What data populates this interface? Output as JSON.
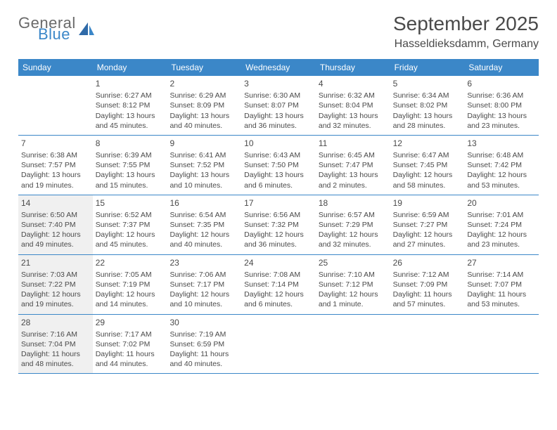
{
  "logo": {
    "general": "General",
    "blue": "Blue"
  },
  "title": "September 2025",
  "location": "Hasseldieksdamm, Germany",
  "colors": {
    "header_bg": "#3b87c8",
    "header_text": "#ffffff",
    "shaded_bg": "#f0f0f0",
    "text": "#4a4a4a",
    "divider": "#3b87c8"
  },
  "weekdays": [
    "Sunday",
    "Monday",
    "Tuesday",
    "Wednesday",
    "Thursday",
    "Friday",
    "Saturday"
  ],
  "weeks": [
    [
      {
        "empty": true
      },
      {
        "num": "1",
        "sunrise": "Sunrise: 6:27 AM",
        "sunset": "Sunset: 8:12 PM",
        "daylight": "Daylight: 13 hours and 45 minutes."
      },
      {
        "num": "2",
        "sunrise": "Sunrise: 6:29 AM",
        "sunset": "Sunset: 8:09 PM",
        "daylight": "Daylight: 13 hours and 40 minutes."
      },
      {
        "num": "3",
        "sunrise": "Sunrise: 6:30 AM",
        "sunset": "Sunset: 8:07 PM",
        "daylight": "Daylight: 13 hours and 36 minutes."
      },
      {
        "num": "4",
        "sunrise": "Sunrise: 6:32 AM",
        "sunset": "Sunset: 8:04 PM",
        "daylight": "Daylight: 13 hours and 32 minutes."
      },
      {
        "num": "5",
        "sunrise": "Sunrise: 6:34 AM",
        "sunset": "Sunset: 8:02 PM",
        "daylight": "Daylight: 13 hours and 28 minutes."
      },
      {
        "num": "6",
        "sunrise": "Sunrise: 6:36 AM",
        "sunset": "Sunset: 8:00 PM",
        "daylight": "Daylight: 13 hours and 23 minutes."
      }
    ],
    [
      {
        "num": "7",
        "sunrise": "Sunrise: 6:38 AM",
        "sunset": "Sunset: 7:57 PM",
        "daylight": "Daylight: 13 hours and 19 minutes."
      },
      {
        "num": "8",
        "sunrise": "Sunrise: 6:39 AM",
        "sunset": "Sunset: 7:55 PM",
        "daylight": "Daylight: 13 hours and 15 minutes."
      },
      {
        "num": "9",
        "sunrise": "Sunrise: 6:41 AM",
        "sunset": "Sunset: 7:52 PM",
        "daylight": "Daylight: 13 hours and 10 minutes."
      },
      {
        "num": "10",
        "sunrise": "Sunrise: 6:43 AM",
        "sunset": "Sunset: 7:50 PM",
        "daylight": "Daylight: 13 hours and 6 minutes."
      },
      {
        "num": "11",
        "sunrise": "Sunrise: 6:45 AM",
        "sunset": "Sunset: 7:47 PM",
        "daylight": "Daylight: 13 hours and 2 minutes."
      },
      {
        "num": "12",
        "sunrise": "Sunrise: 6:47 AM",
        "sunset": "Sunset: 7:45 PM",
        "daylight": "Daylight: 12 hours and 58 minutes."
      },
      {
        "num": "13",
        "sunrise": "Sunrise: 6:48 AM",
        "sunset": "Sunset: 7:42 PM",
        "daylight": "Daylight: 12 hours and 53 minutes."
      }
    ],
    [
      {
        "num": "14",
        "shaded": true,
        "sunrise": "Sunrise: 6:50 AM",
        "sunset": "Sunset: 7:40 PM",
        "daylight": "Daylight: 12 hours and 49 minutes."
      },
      {
        "num": "15",
        "sunrise": "Sunrise: 6:52 AM",
        "sunset": "Sunset: 7:37 PM",
        "daylight": "Daylight: 12 hours and 45 minutes."
      },
      {
        "num": "16",
        "sunrise": "Sunrise: 6:54 AM",
        "sunset": "Sunset: 7:35 PM",
        "daylight": "Daylight: 12 hours and 40 minutes."
      },
      {
        "num": "17",
        "sunrise": "Sunrise: 6:56 AM",
        "sunset": "Sunset: 7:32 PM",
        "daylight": "Daylight: 12 hours and 36 minutes."
      },
      {
        "num": "18",
        "sunrise": "Sunrise: 6:57 AM",
        "sunset": "Sunset: 7:29 PM",
        "daylight": "Daylight: 12 hours and 32 minutes."
      },
      {
        "num": "19",
        "sunrise": "Sunrise: 6:59 AM",
        "sunset": "Sunset: 7:27 PM",
        "daylight": "Daylight: 12 hours and 27 minutes."
      },
      {
        "num": "20",
        "sunrise": "Sunrise: 7:01 AM",
        "sunset": "Sunset: 7:24 PM",
        "daylight": "Daylight: 12 hours and 23 minutes."
      }
    ],
    [
      {
        "num": "21",
        "shaded": true,
        "sunrise": "Sunrise: 7:03 AM",
        "sunset": "Sunset: 7:22 PM",
        "daylight": "Daylight: 12 hours and 19 minutes."
      },
      {
        "num": "22",
        "sunrise": "Sunrise: 7:05 AM",
        "sunset": "Sunset: 7:19 PM",
        "daylight": "Daylight: 12 hours and 14 minutes."
      },
      {
        "num": "23",
        "sunrise": "Sunrise: 7:06 AM",
        "sunset": "Sunset: 7:17 PM",
        "daylight": "Daylight: 12 hours and 10 minutes."
      },
      {
        "num": "24",
        "sunrise": "Sunrise: 7:08 AM",
        "sunset": "Sunset: 7:14 PM",
        "daylight": "Daylight: 12 hours and 6 minutes."
      },
      {
        "num": "25",
        "sunrise": "Sunrise: 7:10 AM",
        "sunset": "Sunset: 7:12 PM",
        "daylight": "Daylight: 12 hours and 1 minute."
      },
      {
        "num": "26",
        "sunrise": "Sunrise: 7:12 AM",
        "sunset": "Sunset: 7:09 PM",
        "daylight": "Daylight: 11 hours and 57 minutes."
      },
      {
        "num": "27",
        "sunrise": "Sunrise: 7:14 AM",
        "sunset": "Sunset: 7:07 PM",
        "daylight": "Daylight: 11 hours and 53 minutes."
      }
    ],
    [
      {
        "num": "28",
        "shaded": true,
        "sunrise": "Sunrise: 7:16 AM",
        "sunset": "Sunset: 7:04 PM",
        "daylight": "Daylight: 11 hours and 48 minutes."
      },
      {
        "num": "29",
        "sunrise": "Sunrise: 7:17 AM",
        "sunset": "Sunset: 7:02 PM",
        "daylight": "Daylight: 11 hours and 44 minutes."
      },
      {
        "num": "30",
        "sunrise": "Sunrise: 7:19 AM",
        "sunset": "Sunset: 6:59 PM",
        "daylight": "Daylight: 11 hours and 40 minutes."
      },
      {
        "empty": true
      },
      {
        "empty": true
      },
      {
        "empty": true
      },
      {
        "empty": true
      }
    ]
  ]
}
